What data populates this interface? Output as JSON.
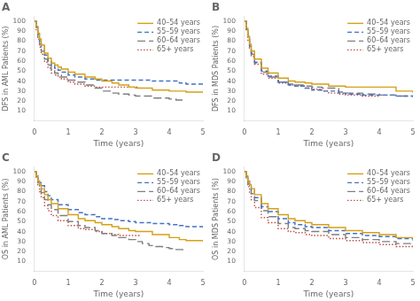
{
  "chart_data": [
    {
      "type": "step",
      "title": "A",
      "xlabel": "Time (years)",
      "ylabel": "DFS in AML Patients (%)",
      "xlim": [
        0,
        5
      ],
      "ylim": [
        0,
        105
      ],
      "xticks": [
        0,
        1,
        2,
        3,
        4,
        5
      ],
      "yticks": [
        10,
        20,
        30,
        40,
        50,
        60,
        70,
        80,
        90,
        100
      ],
      "grid": false,
      "legend": "upper right",
      "series": [
        {
          "name": "40–54 years",
          "color": "#D4A017",
          "line_style": "solid",
          "x": [
            0,
            0.05,
            0.1,
            0.15,
            0.2,
            0.3,
            0.4,
            0.5,
            0.6,
            0.7,
            0.8,
            1.0,
            1.2,
            1.5,
            1.8,
            2.0,
            2.3,
            2.5,
            2.8,
            3.0,
            3.5,
            4.0,
            4.3,
            4.5,
            4.8,
            5.0
          ],
          "values": [
            100,
            95,
            88,
            82,
            76,
            68,
            63,
            58,
            56,
            54,
            52,
            49,
            47,
            44,
            42,
            40,
            38,
            36,
            34,
            33,
            31,
            30,
            30,
            29,
            29,
            28
          ]
        },
        {
          "name": "55–59 years",
          "color": "#4472C4",
          "line_style": "dashed",
          "x": [
            0,
            0.05,
            0.1,
            0.15,
            0.2,
            0.3,
            0.4,
            0.5,
            0.6,
            0.7,
            0.8,
            1.0,
            1.2,
            1.5,
            1.8,
            2.0,
            2.5,
            3.0,
            3.5,
            4.0,
            4.3,
            4.5,
            5.0
          ],
          "values": [
            100,
            94,
            87,
            80,
            74,
            66,
            60,
            56,
            53,
            51,
            49,
            46,
            44,
            42,
            41,
            41,
            41,
            41,
            40,
            40,
            38,
            37,
            35
          ]
        },
        {
          "name": "60–64 years",
          "color": "#7F7F7F",
          "line_style": "long_dashed",
          "x": [
            0,
            0.05,
            0.1,
            0.15,
            0.2,
            0.3,
            0.4,
            0.5,
            0.6,
            0.7,
            0.8,
            1.0,
            1.2,
            1.5,
            1.8,
            2.0,
            2.3,
            2.5,
            2.8,
            3.0,
            3.5,
            4.0,
            4.2,
            4.4
          ],
          "values": [
            100,
            92,
            84,
            77,
            70,
            62,
            56,
            51,
            48,
            46,
            44,
            41,
            39,
            36,
            33,
            30,
            28,
            27,
            26,
            25,
            23,
            22,
            21,
            20
          ]
        },
        {
          "name": "65+ years",
          "color": "#C0504D",
          "line_style": "dotted",
          "x": [
            0,
            0.05,
            0.1,
            0.15,
            0.2,
            0.3,
            0.4,
            0.5,
            0.6,
            0.7,
            0.8,
            1.0,
            1.2,
            1.5,
            1.8,
            2.0,
            2.3,
            2.5,
            2.8,
            3.0,
            3.1
          ],
          "values": [
            100,
            91,
            82,
            74,
            67,
            59,
            53,
            48,
            46,
            44,
            42,
            39,
            37,
            35,
            34,
            34,
            34,
            34,
            34,
            34,
            33
          ]
        }
      ]
    },
    {
      "type": "step",
      "title": "B",
      "xlabel": "Time (years)",
      "ylabel": "DFS in MDS Patients (%)",
      "xlim": [
        0,
        5
      ],
      "ylim": [
        0,
        105
      ],
      "xticks": [
        0,
        1,
        2,
        3,
        4,
        5
      ],
      "yticks": [
        10,
        20,
        30,
        40,
        50,
        60,
        70,
        80,
        90,
        100
      ],
      "grid": false,
      "legend": "upper right",
      "series": [
        {
          "name": "40–54 years",
          "color": "#D4A017",
          "line_style": "solid",
          "x": [
            0,
            0.05,
            0.1,
            0.15,
            0.2,
            0.3,
            0.5,
            0.7,
            1.0,
            1.3,
            1.5,
            1.8,
            2.0,
            2.5,
            3.0,
            3.5,
            4.0,
            4.5,
            5.0
          ],
          "values": [
            100,
            93,
            85,
            77,
            70,
            62,
            53,
            48,
            43,
            40,
            39,
            38,
            37,
            35,
            34,
            34,
            34,
            30,
            28
          ]
        },
        {
          "name": "55–59 years",
          "color": "#4472C4",
          "line_style": "dashed",
          "x": [
            0,
            0.05,
            0.1,
            0.15,
            0.2,
            0.3,
            0.5,
            0.7,
            1.0,
            1.3,
            1.5,
            1.8,
            2.0,
            2.3,
            2.5,
            2.8,
            3.0,
            3.5,
            4.0,
            4.5,
            5.0
          ],
          "values": [
            100,
            92,
            83,
            75,
            68,
            59,
            50,
            45,
            39,
            36,
            35,
            33,
            31,
            30,
            30,
            28,
            27,
            26,
            26,
            25,
            24
          ]
        },
        {
          "name": "60–64 years",
          "color": "#7F7F7F",
          "line_style": "long_dashed",
          "x": [
            0,
            0.05,
            0.1,
            0.15,
            0.2,
            0.3,
            0.5,
            0.7,
            1.0,
            1.3,
            1.5,
            1.8,
            2.0,
            2.3,
            2.5,
            2.8,
            3.0,
            3.5,
            4.0,
            4.5,
            5.0
          ],
          "values": [
            100,
            91,
            82,
            74,
            67,
            58,
            49,
            44,
            39,
            37,
            36,
            35,
            34,
            33,
            33,
            29,
            28,
            27,
            26,
            25,
            24
          ]
        },
        {
          "name": "65+ years",
          "color": "#C0504D",
          "line_style": "dotted",
          "x": [
            0,
            0.05,
            0.1,
            0.15,
            0.2,
            0.3,
            0.5,
            0.7,
            1.0,
            1.3,
            1.5,
            1.8,
            2.0,
            2.3,
            2.5,
            2.8,
            3.0,
            3.5,
            4.0
          ],
          "values": [
            100,
            91,
            81,
            73,
            65,
            57,
            47,
            43,
            38,
            36,
            35,
            33,
            32,
            30,
            28,
            27,
            26,
            25,
            25
          ]
        }
      ]
    },
    {
      "type": "step",
      "title": "C",
      "xlabel": "Time (years)",
      "ylabel": "OS in AML Patients (%)",
      "xlim": [
        0,
        5
      ],
      "ylim": [
        0,
        105
      ],
      "xticks": [
        0,
        1,
        2,
        3,
        4,
        5
      ],
      "yticks": [
        10,
        20,
        30,
        40,
        50,
        60,
        70,
        80,
        90,
        100
      ],
      "grid": false,
      "legend": "upper right",
      "series": [
        {
          "name": "40–54 years",
          "color": "#D4A017",
          "line_style": "solid",
          "x": [
            0,
            0.05,
            0.1,
            0.15,
            0.2,
            0.3,
            0.4,
            0.5,
            0.7,
            1.0,
            1.3,
            1.5,
            1.8,
            2.0,
            2.3,
            2.5,
            2.8,
            3.0,
            3.5,
            4.0,
            4.3,
            4.5,
            5.0
          ],
          "values": [
            100,
            96,
            91,
            87,
            83,
            77,
            72,
            68,
            63,
            57,
            53,
            51,
            49,
            47,
            45,
            43,
            41,
            40,
            37,
            34,
            32,
            31,
            30
          ]
        },
        {
          "name": "55–59 years",
          "color": "#4472C4",
          "line_style": "dashed",
          "x": [
            0,
            0.05,
            0.1,
            0.15,
            0.2,
            0.3,
            0.4,
            0.5,
            0.7,
            1.0,
            1.3,
            1.5,
            1.8,
            2.0,
            2.3,
            2.5,
            2.8,
            3.0,
            3.5,
            4.0,
            4.3,
            4.5,
            5.0
          ],
          "values": [
            100,
            97,
            93,
            89,
            86,
            80,
            76,
            72,
            67,
            62,
            59,
            57,
            55,
            53,
            52,
            51,
            50,
            49,
            48,
            47,
            46,
            45,
            44
          ]
        },
        {
          "name": "60–64 years",
          "color": "#7F7F7F",
          "line_style": "long_dashed",
          "x": [
            0,
            0.05,
            0.1,
            0.15,
            0.2,
            0.3,
            0.4,
            0.5,
            0.7,
            1.0,
            1.3,
            1.5,
            1.8,
            2.0,
            2.3,
            2.5,
            2.8,
            3.0,
            3.2,
            3.4,
            3.6,
            3.8,
            4.0,
            4.2,
            4.4
          ],
          "values": [
            100,
            95,
            89,
            84,
            79,
            72,
            67,
            62,
            56,
            50,
            46,
            44,
            41,
            38,
            36,
            34,
            32,
            30,
            28,
            26,
            25,
            24,
            23,
            22,
            21
          ]
        },
        {
          "name": "65+ years",
          "color": "#C0504D",
          "line_style": "dotted",
          "x": [
            0,
            0.05,
            0.1,
            0.15,
            0.2,
            0.3,
            0.4,
            0.5,
            0.7,
            1.0,
            1.3,
            1.5,
            1.8,
            2.0,
            2.3,
            2.5,
            2.8,
            3.0,
            3.1
          ],
          "values": [
            100,
            94,
            87,
            80,
            74,
            66,
            61,
            56,
            51,
            46,
            43,
            42,
            40,
            38,
            37,
            36,
            36,
            36,
            35
          ]
        }
      ]
    },
    {
      "type": "step",
      "title": "D",
      "xlabel": "Time (years)",
      "ylabel": "OS in MDS Patients (%)",
      "xlim": [
        0,
        5
      ],
      "ylim": [
        0,
        105
      ],
      "xticks": [
        0,
        1,
        2,
        3,
        4,
        5
      ],
      "yticks": [
        10,
        20,
        30,
        40,
        50,
        60,
        70,
        80,
        90,
        100
      ],
      "grid": false,
      "legend": "upper right",
      "series": [
        {
          "name": "40–54 years",
          "color": "#D4A017",
          "line_style": "solid",
          "x": [
            0,
            0.05,
            0.1,
            0.15,
            0.2,
            0.3,
            0.5,
            0.7,
            1.0,
            1.3,
            1.5,
            1.8,
            2.0,
            2.5,
            3.0,
            3.5,
            4.0,
            4.5,
            5.0
          ],
          "values": [
            100,
            96,
            91,
            87,
            83,
            77,
            68,
            63,
            57,
            53,
            51,
            49,
            47,
            44,
            41,
            39,
            37,
            34,
            32
          ]
        },
        {
          "name": "55–59 years",
          "color": "#4472C4",
          "line_style": "dashed",
          "x": [
            0,
            0.05,
            0.1,
            0.15,
            0.2,
            0.3,
            0.5,
            0.7,
            1.0,
            1.3,
            1.5,
            1.8,
            2.0,
            2.5,
            3.0,
            3.5,
            4.0,
            4.5,
            5.0
          ],
          "values": [
            100,
            95,
            90,
            85,
            81,
            74,
            65,
            60,
            53,
            49,
            47,
            45,
            44,
            41,
            38,
            36,
            35,
            33,
            31
          ]
        },
        {
          "name": "60–64 years",
          "color": "#7F7F7F",
          "line_style": "long_dashed",
          "x": [
            0,
            0.05,
            0.1,
            0.15,
            0.2,
            0.3,
            0.5,
            0.7,
            1.0,
            1.3,
            1.5,
            1.8,
            2.0,
            2.5,
            3.0,
            3.5,
            4.0,
            4.5,
            5.0
          ],
          "values": [
            100,
            94,
            88,
            83,
            78,
            71,
            61,
            55,
            48,
            44,
            43,
            41,
            40,
            37,
            34,
            32,
            30,
            28,
            26
          ]
        },
        {
          "name": "65+ years",
          "color": "#C0504D",
          "line_style": "dotted",
          "x": [
            0,
            0.05,
            0.1,
            0.15,
            0.2,
            0.3,
            0.5,
            0.7,
            1.0,
            1.3,
            1.5,
            1.8,
            2.0,
            2.5,
            3.0,
            3.5,
            4.0,
            4.5,
            5.0
          ],
          "values": [
            100,
            93,
            85,
            78,
            72,
            64,
            54,
            49,
            43,
            40,
            39,
            37,
            36,
            33,
            31,
            29,
            27,
            25,
            23
          ]
        }
      ]
    }
  ]
}
